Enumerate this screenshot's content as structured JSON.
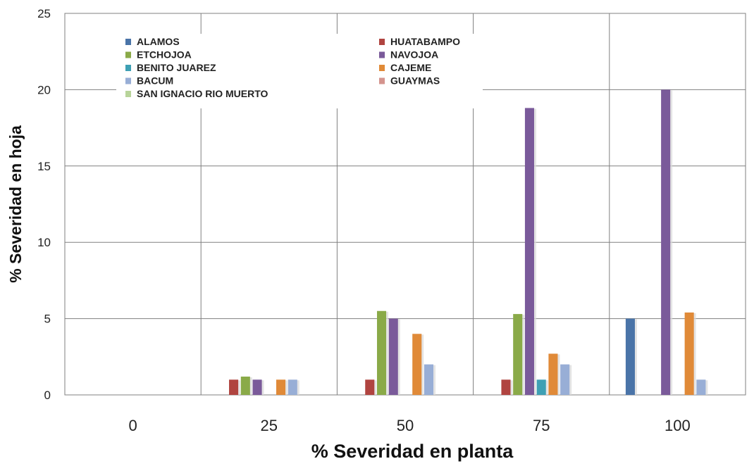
{
  "chart_data": {
    "type": "bar",
    "title": "",
    "xlabel": "% Severidad en planta",
    "ylabel": "% Severidad en hoja",
    "ylim": [
      0,
      25
    ],
    "yticks": [
      0,
      5,
      10,
      15,
      20,
      25
    ],
    "categories": [
      "0",
      "25",
      "50",
      "75",
      "100"
    ],
    "grid": true,
    "legend_position": "top-left",
    "series": [
      {
        "name": "ALAMOS",
        "color": "#4a74a8",
        "values": [
          0,
          0,
          0,
          0,
          5
        ]
      },
      {
        "name": "HUATABAMPO",
        "color": "#b04440",
        "values": [
          0,
          1,
          1,
          1,
          0
        ]
      },
      {
        "name": "ETCHOJOA",
        "color": "#8aaa48",
        "values": [
          0,
          1.2,
          5.5,
          5.3,
          0
        ]
      },
      {
        "name": "NAVOJOA",
        "color": "#7a5a9a",
        "values": [
          0,
          1,
          5,
          18.8,
          20
        ]
      },
      {
        "name": "BENITO JUAREZ",
        "color": "#3ea0b4",
        "values": [
          0,
          0,
          0,
          1,
          0
        ]
      },
      {
        "name": "CAJEME",
        "color": "#e08a38",
        "values": [
          0,
          1,
          4,
          2.7,
          5.4
        ]
      },
      {
        "name": "BACUM",
        "color": "#98aed6",
        "values": [
          0,
          1,
          2,
          2,
          1
        ]
      },
      {
        "name": "GUAYMAS",
        "color": "#d4948e",
        "values": [
          0,
          0,
          0,
          0,
          0
        ]
      },
      {
        "name": "SAN IGNACIO RIO MUERTO",
        "color": "#b8d49a",
        "values": [
          0,
          0,
          0,
          0,
          0
        ]
      }
    ]
  }
}
